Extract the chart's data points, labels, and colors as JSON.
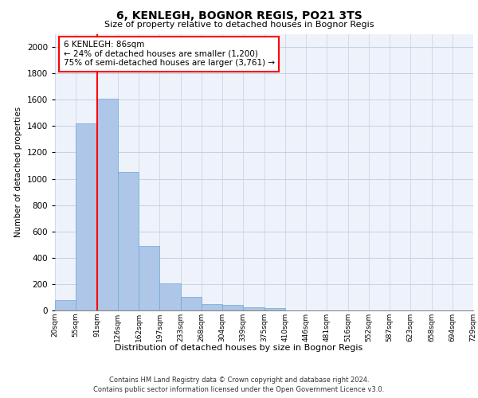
{
  "title": "6, KENLEGH, BOGNOR REGIS, PO21 3TS",
  "subtitle": "Size of property relative to detached houses in Bognor Regis",
  "xlabel": "Distribution of detached houses by size in Bognor Regis",
  "ylabel": "Number of detached properties",
  "bar_values": [
    80,
    1420,
    1610,
    1050,
    490,
    205,
    105,
    50,
    40,
    25,
    20,
    0,
    0,
    0,
    0,
    0,
    0,
    0,
    0,
    0
  ],
  "bar_labels": [
    "20sqm",
    "55sqm",
    "91sqm",
    "126sqm",
    "162sqm",
    "197sqm",
    "233sqm",
    "268sqm",
    "304sqm",
    "339sqm",
    "375sqm",
    "410sqm",
    "446sqm",
    "481sqm",
    "516sqm",
    "552sqm",
    "587sqm",
    "623sqm",
    "658sqm",
    "694sqm",
    "729sqm"
  ],
  "bar_color": "#aec6e8",
  "bar_edge_color": "#6aaad4",
  "ylim": [
    0,
    2100
  ],
  "yticks": [
    0,
    200,
    400,
    600,
    800,
    1000,
    1200,
    1400,
    1600,
    1800,
    2000
  ],
  "property_line_x": 2,
  "property_line_color": "red",
  "annotation_text": "6 KENLEGH: 86sqm\n← 24% of detached houses are smaller (1,200)\n75% of semi-detached houses are larger (3,761) →",
  "footer_line1": "Contains HM Land Registry data © Crown copyright and database right 2024.",
  "footer_line2": "Contains public sector information licensed under the Open Government Licence v3.0.",
  "plot_background": "#eef2fb",
  "grid_color": "#c8cfe0"
}
